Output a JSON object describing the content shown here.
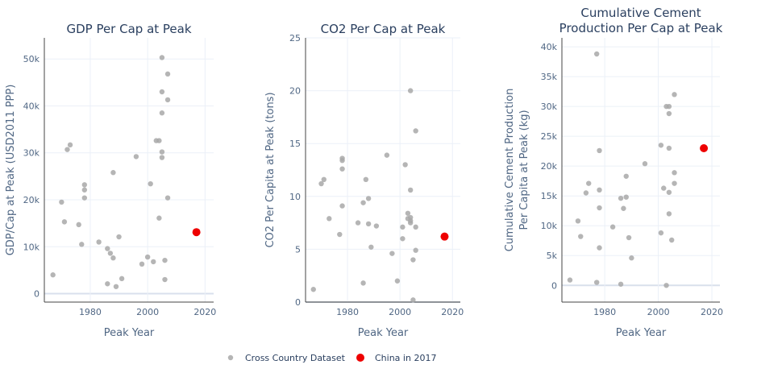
{
  "colors": {
    "grid": "#ebf0f8",
    "zero": "#d9e0ec",
    "gray": "#a8a8a8",
    "china": "#ee0000",
    "text": "#2a3f5f",
    "axis": "#506784"
  },
  "legend": {
    "items": [
      {
        "label": "Cross Country Dataset"
      },
      {
        "label": "China in 2017"
      }
    ]
  },
  "chart_data": [
    {
      "type": "scatter",
      "title": "GDP Per Cap at Peak",
      "xlabel": "Peak Year",
      "ylabel": "GDP/Cap at Peak (USD2011 PPP)",
      "xlim": [
        1964,
        2023
      ],
      "ylim": [
        -1800,
        54500
      ],
      "xticks": [
        1980,
        2000,
        2020
      ],
      "yticks": [
        0,
        10000,
        20000,
        30000,
        40000,
        50000
      ],
      "ytick_labels": [
        "0",
        "10k",
        "20k",
        "30k",
        "40k",
        "50k"
      ],
      "series": [
        {
          "name": "Cross Country Dataset",
          "points": [
            [
              1967,
              4000
            ],
            [
              1970,
              19500
            ],
            [
              1971,
              15300
            ],
            [
              1972,
              30700
            ],
            [
              1973,
              31700
            ],
            [
              1976,
              14700
            ],
            [
              1977,
              10500
            ],
            [
              1978,
              23200
            ],
            [
              1978,
              22100
            ],
            [
              1978,
              20400
            ],
            [
              1983,
              11000
            ],
            [
              1986,
              9600
            ],
            [
              1986,
              2100
            ],
            [
              1987,
              8600
            ],
            [
              1988,
              7600
            ],
            [
              1988,
              25800
            ],
            [
              1989,
              1500
            ],
            [
              1990,
              12100
            ],
            [
              1991,
              3200
            ],
            [
              1996,
              29200
            ],
            [
              1998,
              6300
            ],
            [
              2000,
              7800
            ],
            [
              2001,
              23400
            ],
            [
              2002,
              6800
            ],
            [
              2003,
              32600
            ],
            [
              2004,
              32600
            ],
            [
              2004,
              16100
            ],
            [
              2005,
              50300
            ],
            [
              2005,
              43000
            ],
            [
              2005,
              38500
            ],
            [
              2005,
              30200
            ],
            [
              2005,
              29000
            ],
            [
              2006,
              7100
            ],
            [
              2006,
              3000
            ],
            [
              2007,
              46800
            ],
            [
              2007,
              41300
            ],
            [
              2007,
              20400
            ]
          ]
        },
        {
          "name": "China in 2017",
          "points": [
            [
              2017,
              13100
            ]
          ]
        }
      ]
    },
    {
      "type": "scatter",
      "title": "CO2 Per Cap at Peak",
      "xlabel": "Peak Year",
      "ylabel": "CO2 Per Capita at Peak (tons)",
      "xlim": [
        1964,
        2023
      ],
      "ylim": [
        0,
        25
      ],
      "xticks": [
        1980,
        2000,
        2020
      ],
      "yticks": [
        0,
        5,
        10,
        15,
        20,
        25
      ],
      "ytick_labels": [
        "0",
        "5",
        "10",
        "15",
        "20",
        "25"
      ],
      "series": [
        {
          "name": "Cross Country Dataset",
          "points": [
            [
              1967,
              1.2
            ],
            [
              1970,
              11.2
            ],
            [
              1971,
              11.6
            ],
            [
              1973,
              7.9
            ],
            [
              1977,
              6.4
            ],
            [
              1978,
              9.1
            ],
            [
              1978,
              12.6
            ],
            [
              1978,
              13.4
            ],
            [
              1978,
              13.6
            ],
            [
              1984,
              7.5
            ],
            [
              1986,
              1.8
            ],
            [
              1986,
              9.4
            ],
            [
              1987,
              11.6
            ],
            [
              1988,
              9.8
            ],
            [
              1988,
              7.4
            ],
            [
              1989,
              5.2
            ],
            [
              1991,
              7.2
            ],
            [
              1995,
              13.9
            ],
            [
              1997,
              4.6
            ],
            [
              1999,
              2.0
            ],
            [
              2001,
              6.0
            ],
            [
              2001,
              7.1
            ],
            [
              2002,
              13.0
            ],
            [
              2003,
              8.4
            ],
            [
              2003,
              7.9
            ],
            [
              2004,
              20.0
            ],
            [
              2004,
              10.6
            ],
            [
              2004,
              8.0
            ],
            [
              2004,
              7.7
            ],
            [
              2004,
              7.5
            ],
            [
              2005,
              4.0
            ],
            [
              2005,
              0.2
            ],
            [
              2006,
              16.2
            ],
            [
              2006,
              7.1
            ],
            [
              2006,
              4.9
            ]
          ]
        },
        {
          "name": "China in 2017",
          "points": [
            [
              2017,
              6.2
            ]
          ]
        }
      ]
    },
    {
      "type": "scatter",
      "title": "Cumulative Cement Production Per Cap at Peak",
      "title_lines": [
        "Cumulative Cement",
        "Production Per Cap at Peak"
      ],
      "xlabel": "Peak Year",
      "ylabel": "Cumulative Cement Production Per Capita at Peak (kg)",
      "ylabel_lines": [
        "Cumulative Cement Production",
        "Per Capita at Peak (kg)"
      ],
      "xlim": [
        1964,
        2023
      ],
      "ylim": [
        -2800,
        41500
      ],
      "xticks": [
        1980,
        2000,
        2020
      ],
      "yticks": [
        0,
        5000,
        10000,
        15000,
        20000,
        25000,
        30000,
        35000,
        40000
      ],
      "ytick_labels": [
        "0",
        "5k",
        "10k",
        "15k",
        "20k",
        "25k",
        "30k",
        "35k",
        "40k"
      ],
      "series": [
        {
          "name": "Cross Country Dataset",
          "points": [
            [
              1967,
              900
            ],
            [
              1970,
              10800
            ],
            [
              1971,
              8200
            ],
            [
              1973,
              15500
            ],
            [
              1974,
              17100
            ],
            [
              1977,
              38800
            ],
            [
              1977,
              500
            ],
            [
              1978,
              22600
            ],
            [
              1978,
              16000
            ],
            [
              1978,
              13000
            ],
            [
              1978,
              6300
            ],
            [
              1983,
              9800
            ],
            [
              1986,
              200
            ],
            [
              1986,
              14600
            ],
            [
              1987,
              12900
            ],
            [
              1988,
              14800
            ],
            [
              1988,
              18300
            ],
            [
              1989,
              8000
            ],
            [
              1990,
              4600
            ],
            [
              1995,
              20400
            ],
            [
              2001,
              23500
            ],
            [
              2001,
              8800
            ],
            [
              2002,
              16300
            ],
            [
              2003,
              30000
            ],
            [
              2003,
              0
            ],
            [
              2004,
              30000
            ],
            [
              2004,
              28800
            ],
            [
              2004,
              23000
            ],
            [
              2004,
              15600
            ],
            [
              2004,
              12000
            ],
            [
              2005,
              7600
            ],
            [
              2006,
              32000
            ],
            [
              2006,
              18900
            ],
            [
              2006,
              17100
            ]
          ]
        },
        {
          "name": "China in 2017",
          "points": [
            [
              2017,
              23000
            ]
          ]
        }
      ]
    }
  ]
}
